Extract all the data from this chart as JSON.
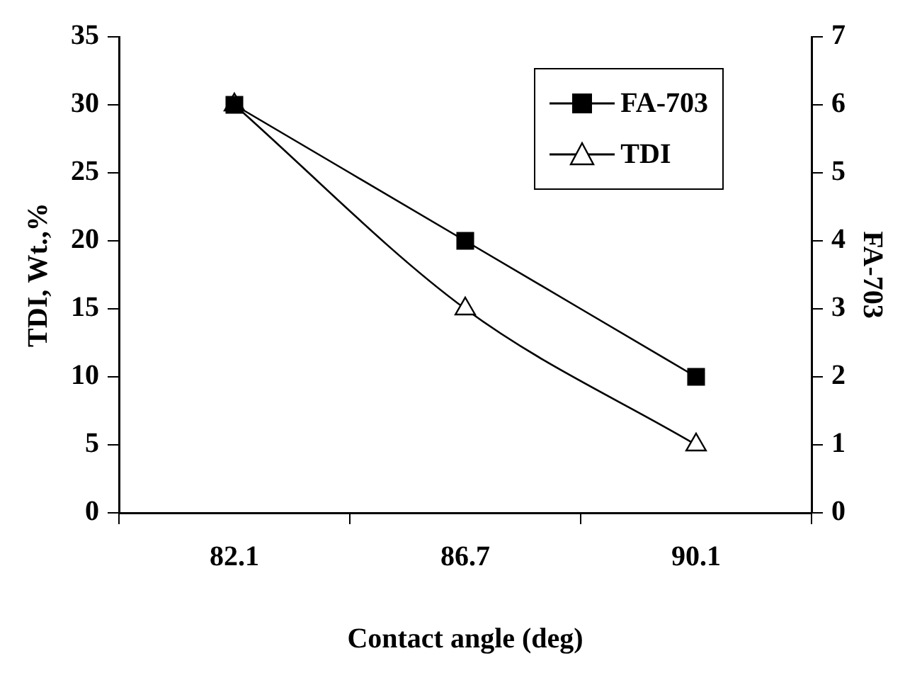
{
  "chart_data": {
    "type": "line",
    "xlabel": "Contact angle (deg)",
    "ylabel": "TDI, Wt.,%",
    "y2label": "FA-703",
    "categories": [
      "82.1",
      "86.7",
      "90.1"
    ],
    "series": [
      {
        "name": "FA-703",
        "color": "#000000",
        "values": [
          6,
          4,
          2
        ],
        "axis": "y2",
        "marker": "square"
      },
      {
        "name": "TDI",
        "color": "#000000",
        "values": [
          30,
          15,
          5
        ],
        "marker": "triangle"
      }
    ],
    "ylim": [
      0,
      35
    ],
    "yticks": [
      0,
      5,
      10,
      15,
      20,
      25,
      30,
      35
    ],
    "y2lim": [
      0,
      7
    ],
    "y2ticks": [
      0,
      1,
      2,
      3,
      4,
      5,
      6,
      7
    ],
    "grid": false,
    "legend": "top right",
    "line_style": "solid"
  }
}
